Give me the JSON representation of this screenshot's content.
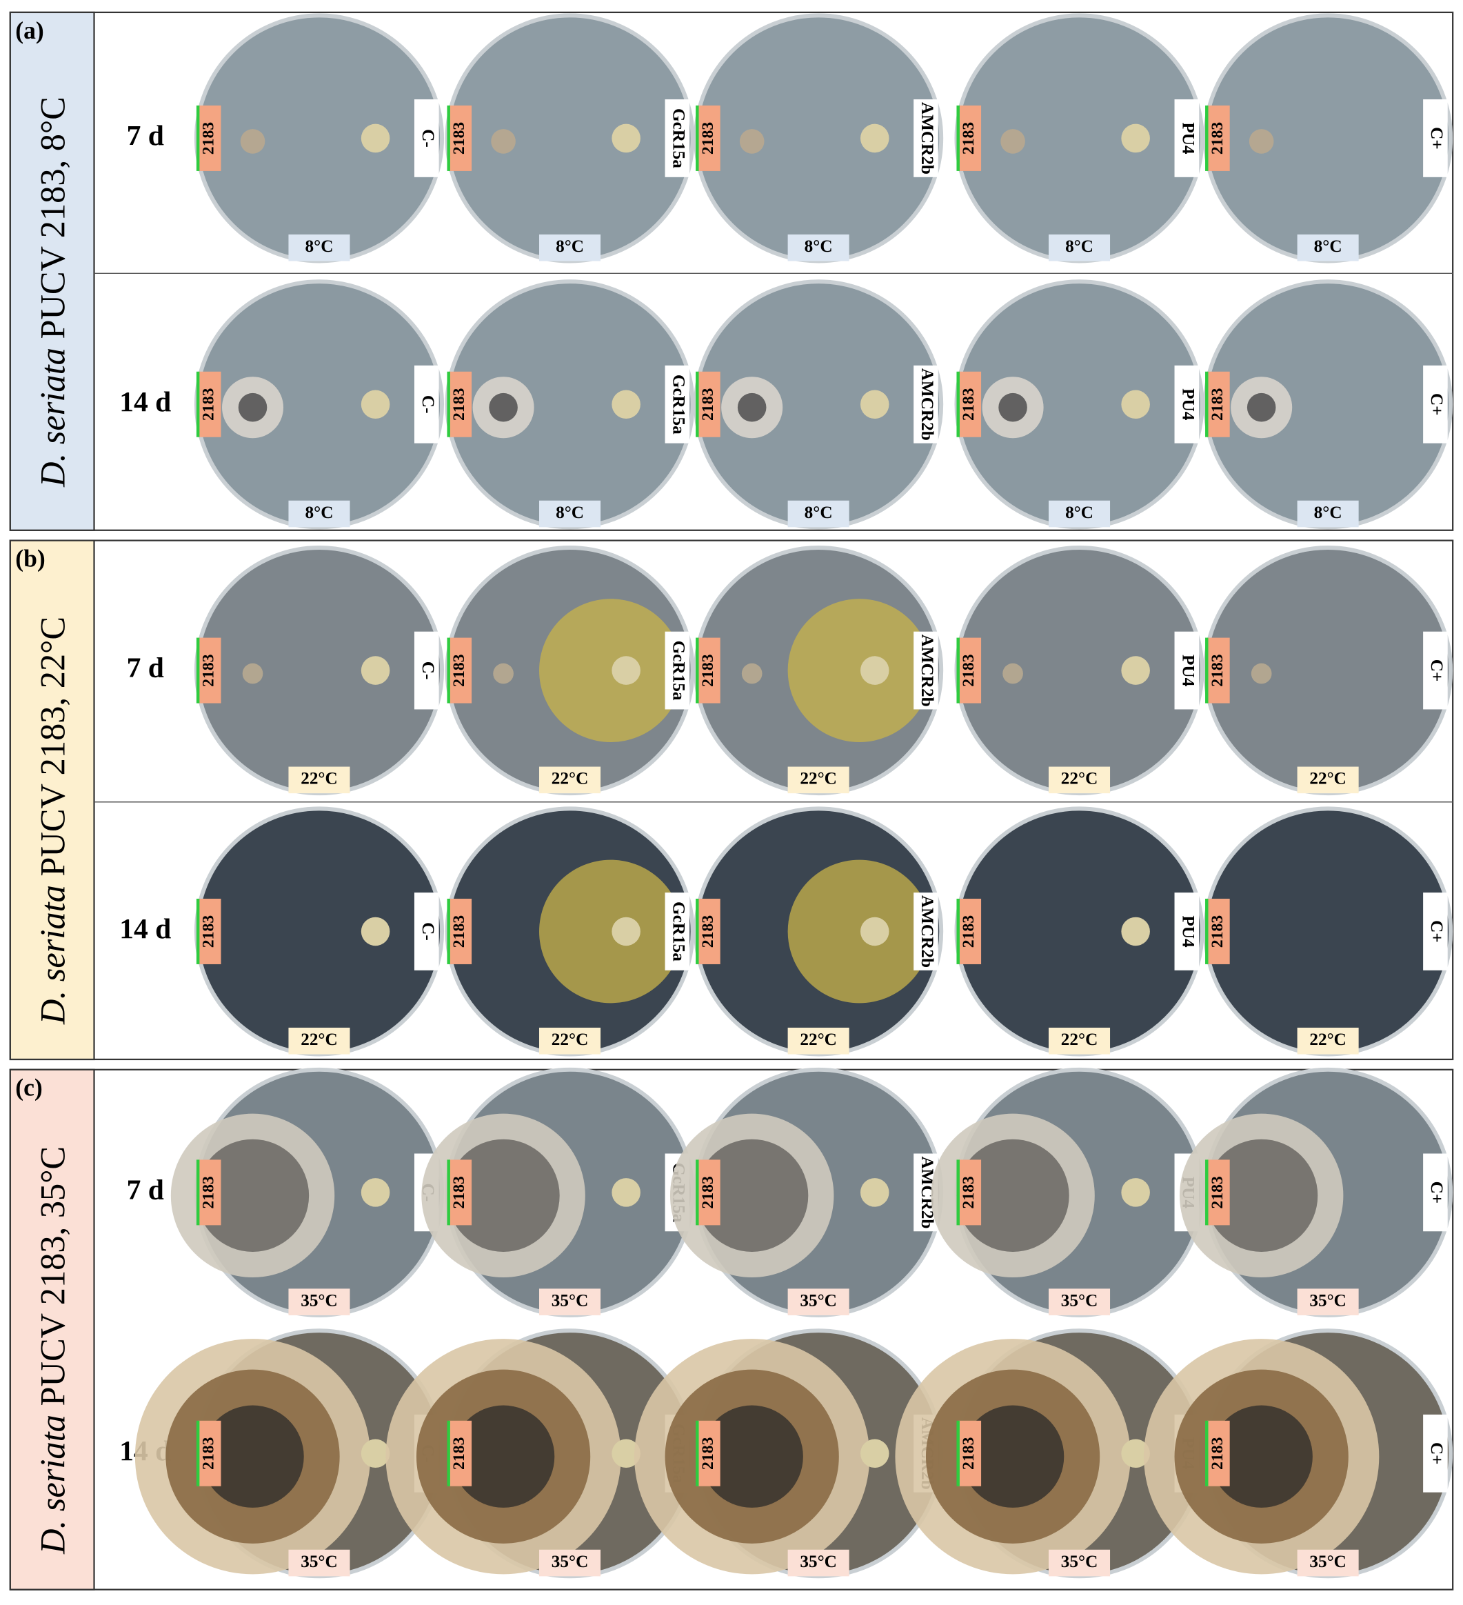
{
  "panels": [
    {
      "tag": "(a)",
      "species": "D. seriata",
      "title_rest": " PUCV 2183, 8°C",
      "temperature": "8°C",
      "inoculum": "2183",
      "rows": [
        "7 d",
        "14 d"
      ],
      "treatments": [
        "C-",
        "GcR15a",
        "AMCR2b",
        "PU4",
        "C+"
      ]
    },
    {
      "tag": "(b)",
      "species": "D. seriata",
      "title_rest": " PUCV 2183, 22°C",
      "temperature": "22°C",
      "inoculum": "2183",
      "rows": [
        "7 d",
        "14 d"
      ],
      "treatments": [
        "C-",
        "GcR15a",
        "AMCR2b",
        "PU4",
        "C+"
      ]
    },
    {
      "tag": "(c)",
      "species": "D. seriata",
      "title_rest": " PUCV 2183, 35°C",
      "temperature": "35°C",
      "inoculum": "2183",
      "rows": [
        "7 d",
        "14 d"
      ],
      "treatments": [
        "C-",
        "GcR15a",
        "AMCR2b",
        "PU4",
        "C+"
      ]
    }
  ]
}
